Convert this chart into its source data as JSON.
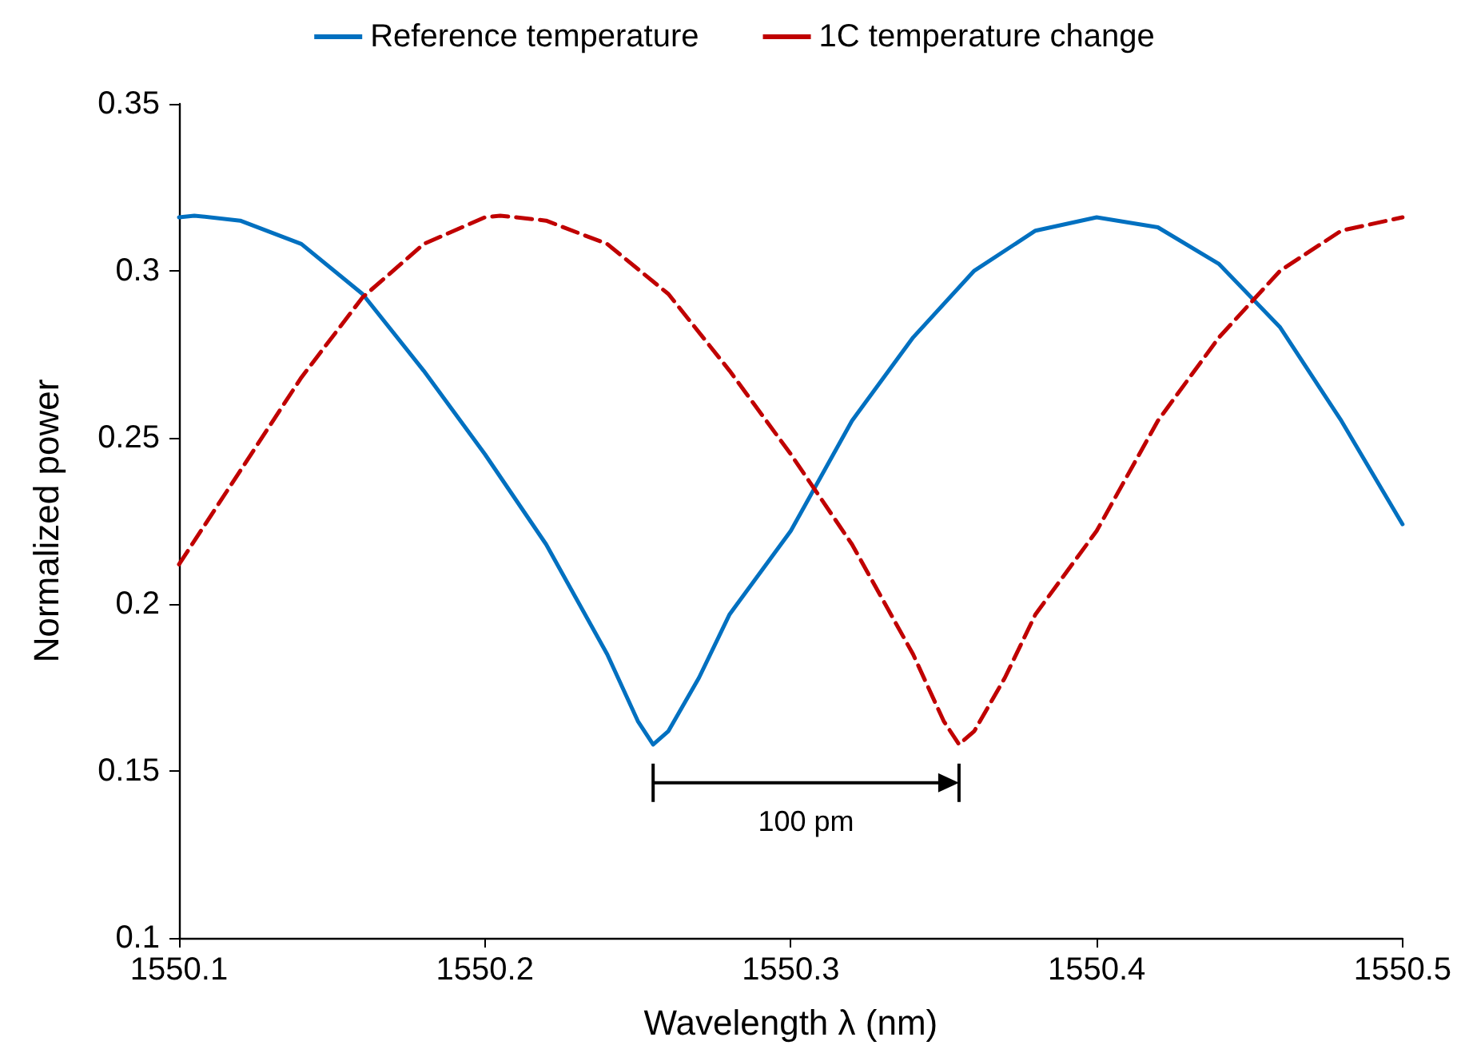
{
  "chart_data": {
    "type": "line",
    "xlabel": "Wavelength λ (nm)",
    "ylabel": "Normalized power",
    "xlim": [
      1550.1,
      1550.5
    ],
    "xticks": [
      1550.1,
      1550.2,
      1550.3,
      1550.4,
      1550.5
    ],
    "ylim": [
      0.1,
      0.35
    ],
    "yticks": [
      0.1,
      0.15,
      0.2,
      0.25,
      0.3,
      0.35
    ],
    "grid": false,
    "legend": "top",
    "marker": "none",
    "series": [
      {
        "name": "Reference temperature",
        "color": "#0070c0",
        "line_style": "solid",
        "x": [
          1550.1,
          1550.105,
          1550.12,
          1550.14,
          1550.16,
          1550.18,
          1550.2,
          1550.22,
          1550.24,
          1550.25,
          1550.255,
          1550.26,
          1550.27,
          1550.28,
          1550.3,
          1550.32,
          1550.34,
          1550.36,
          1550.38,
          1550.4,
          1550.42,
          1550.44,
          1550.46,
          1550.48,
          1550.5
        ],
        "values": [
          0.316,
          0.3165,
          0.315,
          0.308,
          0.293,
          0.27,
          0.245,
          0.218,
          0.185,
          0.165,
          0.158,
          0.162,
          0.178,
          0.197,
          0.222,
          0.255,
          0.28,
          0.3,
          0.312,
          0.316,
          0.313,
          0.302,
          0.283,
          0.255,
          0.224
        ]
      },
      {
        "name": "1C temperature change",
        "color": "#c00000",
        "line_style": "dashed",
        "x": [
          1550.1,
          1550.12,
          1550.14,
          1550.16,
          1550.18,
          1550.2,
          1550.205,
          1550.22,
          1550.24,
          1550.26,
          1550.28,
          1550.3,
          1550.32,
          1550.34,
          1550.35,
          1550.355,
          1550.36,
          1550.37,
          1550.38,
          1550.4,
          1550.42,
          1550.44,
          1550.46,
          1550.48,
          1550.5
        ],
        "values": [
          0.212,
          0.24,
          0.268,
          0.292,
          0.308,
          0.316,
          0.3165,
          0.315,
          0.308,
          0.293,
          0.27,
          0.245,
          0.218,
          0.185,
          0.165,
          0.158,
          0.162,
          0.178,
          0.197,
          0.222,
          0.255,
          0.28,
          0.3,
          0.312,
          0.316
        ]
      }
    ],
    "annotations": [
      "100 pm"
    ]
  }
}
